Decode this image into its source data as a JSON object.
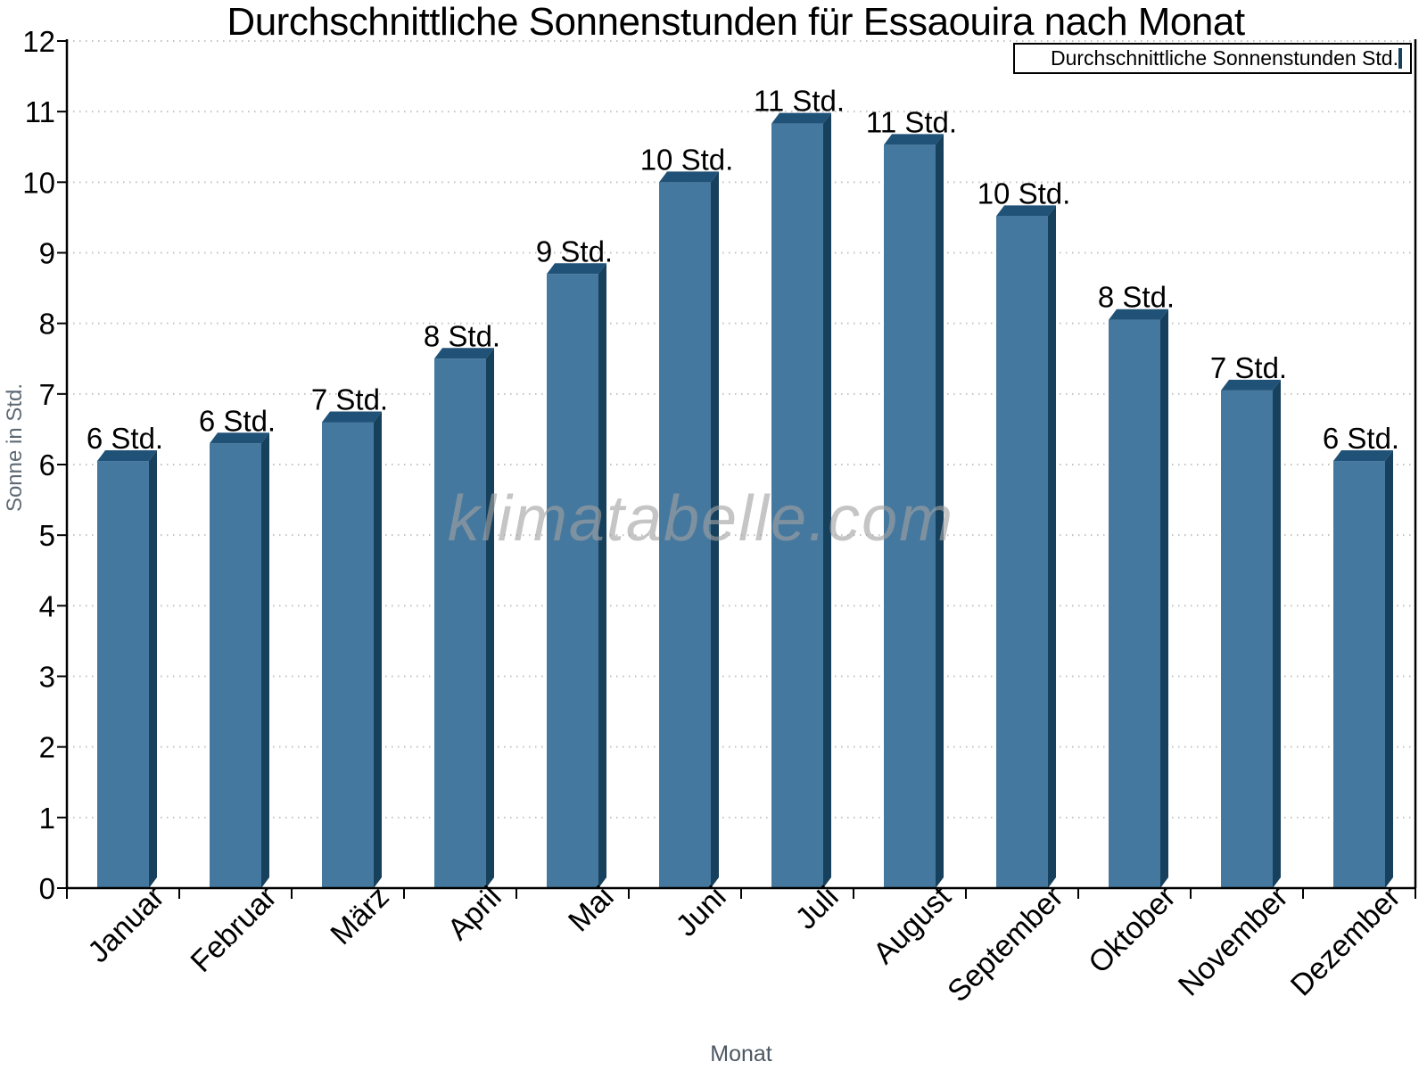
{
  "title": "Durchschnittliche Sonnenstunden für Essaouira nach Monat",
  "legend": {
    "label": "Durchschnittliche Sonnenstunden Std."
  },
  "watermark": "klimatabelle.com",
  "axis_titles": {
    "y": "Sonne in Std.",
    "x": "Monat"
  },
  "chart_data": {
    "type": "bar",
    "title": "Durchschnittliche Sonnenstunden für Essaouira nach Monat",
    "xlabel": "Monat",
    "ylabel": "Sonne in Std.",
    "categories": [
      "Januar",
      "Februar",
      "März",
      "April",
      "Mai",
      "Juni",
      "Juli",
      "August",
      "September",
      "Oktober",
      "November",
      "Dezember"
    ],
    "values": [
      6.05,
      6.3,
      6.6,
      7.5,
      8.7,
      10.0,
      10.83,
      10.53,
      9.52,
      8.05,
      7.05,
      6.05
    ],
    "bar_labels": [
      "6 Std.",
      "6 Std.",
      "7 Std.",
      "8 Std.",
      "9 Std.",
      "10 Std.",
      "11 Std.",
      "11 Std.",
      "10 Std.",
      "8 Std.",
      "7 Std.",
      "6 Std."
    ],
    "ylim": [
      0,
      12
    ],
    "yticks": [
      0,
      1,
      2,
      3,
      4,
      5,
      6,
      7,
      8,
      9,
      10,
      11,
      12
    ],
    "grid": "horizontal-dotted",
    "legend_entries": [
      "Durchschnittliche Sonnenstunden Std."
    ],
    "legend_position": "top-right",
    "colors": {
      "bar_front": "#45789E",
      "bar_top": "#205278",
      "bar_side": "#16405C",
      "grid": "#c2c2c2",
      "axis": "#000000",
      "text": "#000000",
      "axis_title": "#5d6974",
      "watermark": "#a2a2a2"
    }
  }
}
